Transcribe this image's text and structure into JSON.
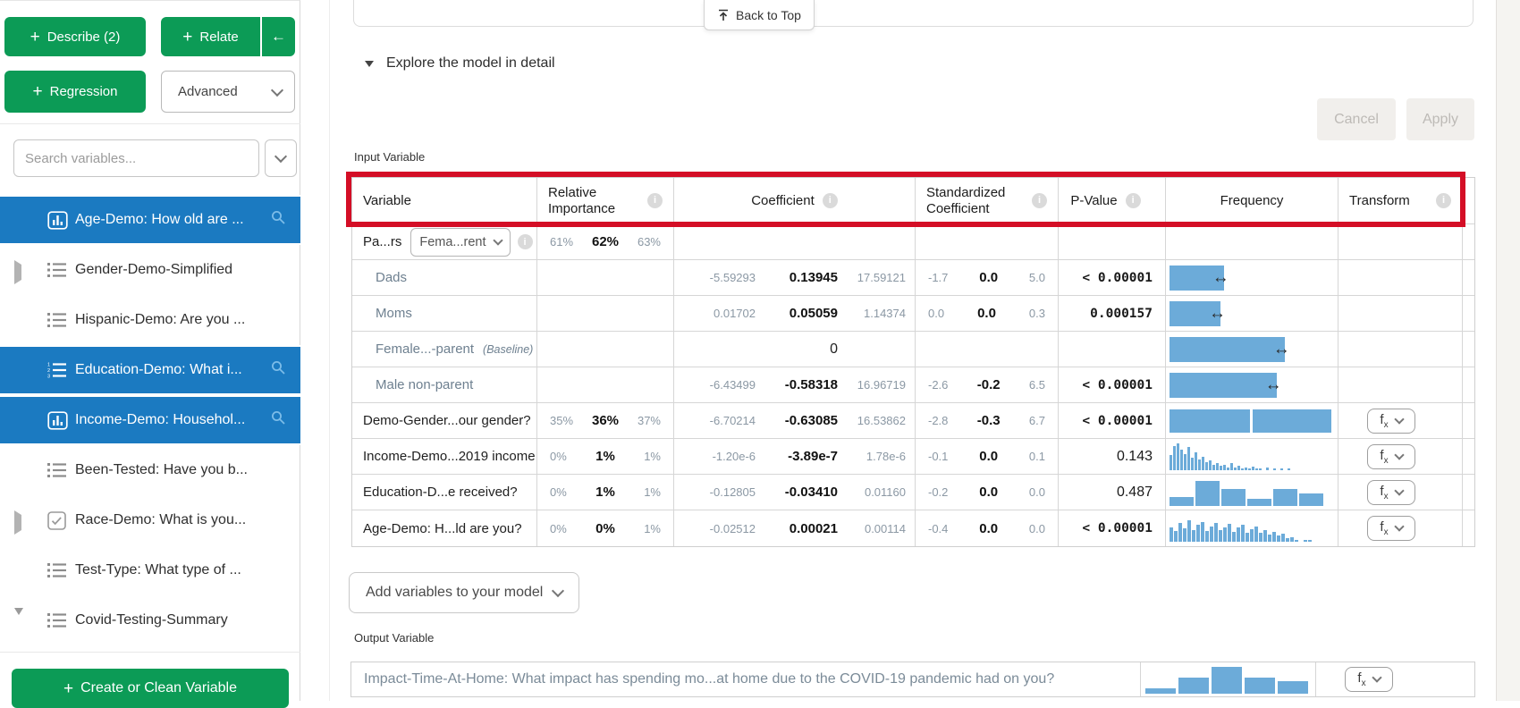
{
  "colors": {
    "green": "#0c9b56",
    "blue": "#1b7ac1",
    "bar": "#6cabd9",
    "red": "#d40e26",
    "magnifier": "#7cbce8"
  },
  "sidebar": {
    "describe_label": "Describe (2)",
    "relate_label": "Relate",
    "collapse_arrow": "←",
    "regression_label": "Regression",
    "advanced_label": "Advanced",
    "search_placeholder": "Search variables...",
    "create_label": "Create or Clean Variable",
    "items": [
      {
        "label": "Age-Demo: How old are ...",
        "icon": "bar-chart",
        "selected": true,
        "search": true
      },
      {
        "label": "Gender-Demo-Simplified",
        "icon": "list",
        "expander": "collapsed"
      },
      {
        "label": "Hispanic-Demo: Are you ...",
        "icon": "list"
      },
      {
        "label": "Education-Demo: What i...",
        "icon": "numbered-list",
        "selected": true,
        "search": true
      },
      {
        "label": "Income-Demo: Househol...",
        "icon": "bar-chart",
        "selected": true,
        "search": true
      },
      {
        "label": "Been-Tested: Have you b...",
        "icon": "list"
      },
      {
        "label": "Race-Demo: What is you...",
        "icon": "checkbox",
        "expander": "collapsed"
      },
      {
        "label": "Test-Type: What type of ...",
        "icon": "list"
      },
      {
        "label": "Covid-Testing-Summary",
        "icon": "list",
        "expander": "expanded"
      }
    ]
  },
  "main": {
    "back_to_top": "Back to Top",
    "section_title": "Explore the model in detail",
    "cancel_label": "Cancel",
    "apply_label": "Apply",
    "input_label": "Input Variable",
    "add_variables_label": "Add variables to your model",
    "output_label": "Output Variable"
  },
  "table": {
    "headers": [
      {
        "label": "Variable",
        "align": "left"
      },
      {
        "label": "Relative Importance",
        "info": true,
        "align": "left"
      },
      {
        "label": "Coefficient",
        "info": true,
        "align": "center"
      },
      {
        "label": "Standardized Coefficient",
        "info": true,
        "align": "left"
      },
      {
        "label": "P-Value",
        "info": true,
        "align": "center"
      },
      {
        "label": "Frequency",
        "align": "center"
      },
      {
        "label": "Transform",
        "info": true,
        "align": "left"
      }
    ],
    "rows": [
      {
        "label": "Pa...rs",
        "group": true,
        "dropdown": "Fema...rent",
        "info": true,
        "relimp": [
          "61%",
          "62%",
          "63%"
        ]
      },
      {
        "label": "Dads",
        "sub": true,
        "coef": [
          "-5.59293",
          "0.13945",
          "17.59121"
        ],
        "std": [
          "-1.7",
          "0.0",
          "5.0"
        ],
        "pvalue": {
          "text": "< 0.00001",
          "strong": true
        },
        "freq": {
          "type": "bar",
          "pct": 33,
          "arrow": true
        }
      },
      {
        "label": "Moms",
        "sub": true,
        "coef": [
          "0.01702",
          "0.05059",
          "1.14374"
        ],
        "std": [
          "0.0",
          "0.0",
          "0.3"
        ],
        "pvalue": {
          "text": "0.000157",
          "strong": true
        },
        "freq": {
          "type": "bar",
          "pct": 31,
          "arrow": true
        }
      },
      {
        "label": "Female...-parent",
        "suffix": "(Baseline)",
        "sub": true,
        "coef": [
          "",
          "0",
          ""
        ],
        "coef_plain": true,
        "freq": {
          "type": "bar",
          "pct": 70,
          "arrow": true
        }
      },
      {
        "label": "Male non-parent",
        "sub": true,
        "coef": [
          "-6.43499",
          "-0.58318",
          "16.96719"
        ],
        "std": [
          "-2.6",
          "-0.2",
          "6.5"
        ],
        "pvalue": {
          "text": "< 0.00001",
          "strong": true
        },
        "freq": {
          "type": "bar",
          "pct": 65,
          "arrow": true
        }
      },
      {
        "label": "Demo-Gender...our gender?",
        "relimp": [
          "35%",
          "36%",
          "37%"
        ],
        "coef": [
          "-6.70214",
          "-0.63085",
          "16.53862"
        ],
        "std": [
          "-2.8",
          "-0.3",
          "6.7"
        ],
        "pvalue": {
          "text": "< 0.00001",
          "strong": true
        },
        "freq": {
          "type": "split",
          "segments": [
            49,
            48
          ]
        },
        "fx": true
      },
      {
        "label": "Income-Demo...2019 income",
        "relimp": [
          "0%",
          "1%",
          "1%"
        ],
        "coef": [
          "-1.20e-6",
          "-3.89e-7",
          "1.78e-6"
        ],
        "std": [
          "-0.1",
          "0.0",
          "0.1"
        ],
        "pvalue": {
          "text": "0.143",
          "strong": false
        },
        "freq": {
          "type": "hist",
          "barw": 3,
          "bars": [
            55,
            90,
            100,
            75,
            60,
            85,
            45,
            65,
            38,
            50,
            28,
            35,
            20,
            26,
            15,
            20,
            10,
            24,
            8,
            14,
            6,
            10,
            4,
            12,
            3,
            6,
            0,
            8,
            0,
            4,
            0,
            5,
            0,
            3
          ]
        },
        "fx": true
      },
      {
        "label": "Education-D...e received?",
        "relimp": [
          "0%",
          "1%",
          "1%"
        ],
        "coef": [
          "-0.12805",
          "-0.03410",
          "0.01160"
        ],
        "std": [
          "-0.2",
          "0.0",
          "0.0"
        ],
        "pvalue": {
          "text": "0.487",
          "strong": false
        },
        "freq": {
          "type": "hist",
          "barw": 27,
          "gap": 2,
          "bars": [
            32,
            92,
            62,
            25,
            62,
            45
          ]
        },
        "fx": true
      },
      {
        "label": "Age-Demo: H...ld are you?",
        "relimp": [
          "0%",
          "0%",
          "1%"
        ],
        "coef": [
          "-0.02512",
          "0.00021",
          "0.00114"
        ],
        "std": [
          "-0.4",
          "0.0",
          "0.0"
        ],
        "pvalue": {
          "text": "< 0.00001",
          "strong": true
        },
        "freq": {
          "type": "hist",
          "barw": 4,
          "bars": [
            55,
            40,
            70,
            50,
            80,
            45,
            62,
            75,
            40,
            58,
            70,
            42,
            55,
            66,
            38,
            52,
            62,
            35,
            48,
            58,
            32,
            45,
            28,
            38,
            22,
            30,
            15,
            18,
            8,
            0,
            5,
            3
          ]
        },
        "fx": true
      }
    ]
  },
  "output_row": {
    "text": "Impact-Time-At-Home: What impact has spending mo...at home due to the COVID-19 pandemic had on you?",
    "hist": [
      14,
      45,
      74,
      44,
      36
    ],
    "fx_label": "fx"
  }
}
